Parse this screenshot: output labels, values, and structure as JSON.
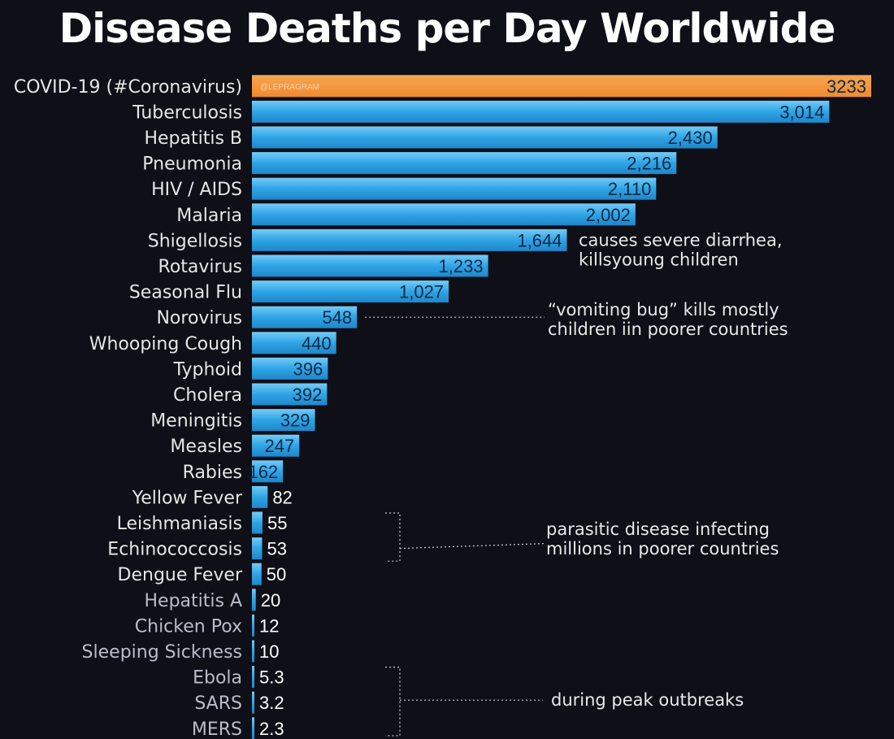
{
  "title": "Disease Deaths per Day Worldwide",
  "watermark": "@LEPRAGRAM",
  "colors": {
    "highlight": "#f3923c",
    "bar": "#2fa4e6",
    "bar_light": "#6cc6f5",
    "background": "#0e0f17"
  },
  "chart_data": {
    "type": "bar",
    "orientation": "horizontal",
    "title": "Disease Deaths per Day Worldwide",
    "xlabel": "",
    "ylabel": "",
    "grid": false,
    "categories": [
      "COVID-19 (#Coronavirus)",
      "Tuberculosis",
      "Hepatitis B",
      "Pneumonia",
      "HIV / AIDS",
      "Malaria",
      "Shigellosis",
      "Rotavirus",
      "Seasonal Flu",
      "Norovirus",
      "Whooping Cough",
      "Typhoid",
      "Cholera",
      "Meningitis",
      "Measles",
      "Rabies",
      "Yellow Fever",
      "Leishmaniasis",
      "Echinococcosis",
      "Dengue Fever",
      "Hepatitis A",
      "Chicken Pox",
      "Sleeping Sickness",
      "Ebola",
      "SARS",
      "MERS"
    ],
    "values": [
      3233,
      3014,
      2430,
      2216,
      2110,
      2002,
      1644,
      1233,
      1027,
      548,
      440,
      396,
      392,
      329,
      247,
      162,
      82,
      55,
      53,
      50,
      20,
      12,
      10,
      5.3,
      3.2,
      2.3
    ],
    "value_labels": [
      "3233",
      "3,014",
      "2,430",
      "2,216",
      "2,110",
      "2,002",
      "1,644",
      "1,233",
      "1,027",
      "548",
      "440",
      "396",
      "392",
      "329",
      "247",
      "162",
      "82",
      "55",
      "53",
      "50",
      "20",
      "12",
      "10",
      "5.3",
      "3.2",
      "2.3"
    ],
    "highlight_index": 0,
    "annotations": [
      {
        "target": "Shigellosis",
        "lines": [
          "causes severe diarrhea,",
          "killsyoung children"
        ]
      },
      {
        "target": "Norovirus",
        "lines": [
          "“vomiting bug” kills mostly",
          "children iin poorer countries"
        ]
      },
      {
        "target": "Leishmaniasis, Echinococcosis, Dengue Fever",
        "lines": [
          "parasitic disease infecting",
          "millions in poorer countries"
        ]
      },
      {
        "target": "Ebola, SARS, MERS",
        "lines": [
          "during peak outbreaks"
        ]
      }
    ]
  }
}
